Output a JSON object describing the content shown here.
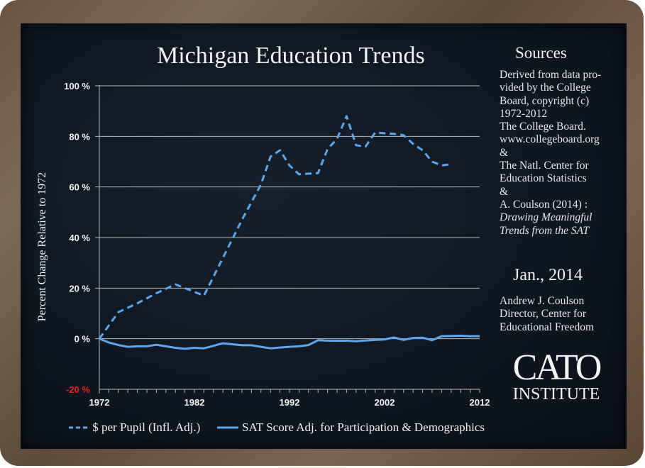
{
  "chart_data": {
    "type": "line",
    "title": "Michigan Education Trends",
    "xlabel": "",
    "ylabel": "Percent Change Relative to 1972",
    "xlim": [
      1972,
      2012
    ],
    "ylim": [
      -20,
      100
    ],
    "x_ticks": [
      "1972",
      "1982",
      "1992",
      "2002",
      "2012"
    ],
    "y_ticks": [
      "100 %",
      "80 %",
      "60 %",
      "40 %",
      "20 %",
      "0 %",
      "-20 %"
    ],
    "y_tick_values": [
      100,
      80,
      60,
      40,
      20,
      0,
      -20
    ],
    "grid": true,
    "legend_position": "bottom",
    "series": [
      {
        "name": "$ per Pupil (Infl. Adj.)",
        "style": "dashed",
        "color": "#5aa7ee",
        "x": [
          1972,
          1974,
          1976,
          1978,
          1980,
          1983,
          1985,
          1987,
          1989,
          1990,
          1991,
          1992,
          1993,
          1995,
          1996,
          1997,
          1998,
          1999,
          2000,
          2001,
          2003,
          2004,
          2005,
          2006,
          2007,
          2008,
          2009
        ],
        "values": [
          0,
          10.5,
          14,
          18,
          21.5,
          17,
          32,
          47,
          61,
          72,
          74.5,
          68.5,
          65,
          65.5,
          75,
          79,
          88,
          76.5,
          76,
          81.5,
          81,
          80.5,
          77,
          74.5,
          70,
          68.5,
          69
        ]
      },
      {
        "name": "SAT Score Adj. for Participation & Demographics",
        "style": "solid",
        "color": "#5aa7ee",
        "x": [
          1972,
          1973,
          1974,
          1975,
          1976,
          1977,
          1978,
          1979,
          1980,
          1981,
          1982,
          1983,
          1984,
          1985,
          1986,
          1987,
          1988,
          1989,
          1990,
          1991,
          1992,
          1993,
          1994,
          1995,
          1996,
          1997,
          1998,
          1999,
          2000,
          2001,
          2002,
          2003,
          2004,
          2005,
          2006,
          2007,
          2008,
          2009,
          2010,
          2011,
          2012
        ],
        "values": [
          0,
          -1.5,
          -2.5,
          -3.2,
          -3,
          -3,
          -2.4,
          -3,
          -3.6,
          -4,
          -3.6,
          -3.8,
          -2.8,
          -1.8,
          -2.2,
          -2.6,
          -2.6,
          -3.2,
          -3.8,
          -3.5,
          -3.2,
          -3,
          -2.5,
          -0.6,
          -0.8,
          -0.8,
          -0.8,
          -1,
          -0.7,
          -0.5,
          -0.3,
          0.5,
          -0.5,
          0.3,
          0.4,
          -0.6,
          1,
          1.1,
          1.2,
          1,
          1
        ]
      }
    ]
  },
  "sources": {
    "heading": "Sources",
    "lines": [
      "Derived from data pro-",
      "vided by the College",
      "Board, copyright (c)",
      "1972-2012",
      "The College Board.",
      "www.collegeboard.org",
      "&",
      "The Natl. Center for",
      "Education Statistics",
      "&",
      "A. Coulson (2014) :"
    ],
    "italic_lines": [
      "Drawing Meaningful",
      "Trends from the SAT"
    ]
  },
  "date": "Jan., 2014",
  "author": {
    "lines": [
      "Andrew J. Coulson",
      "Director, Center for",
      "Educational Freedom"
    ]
  },
  "logo": {
    "line1": "CATO",
    "line2": "INSTITUTE"
  },
  "colors": {
    "series": "#5aa7ee",
    "negative_tick": "#e02020",
    "grid": "#b8b8b8"
  }
}
